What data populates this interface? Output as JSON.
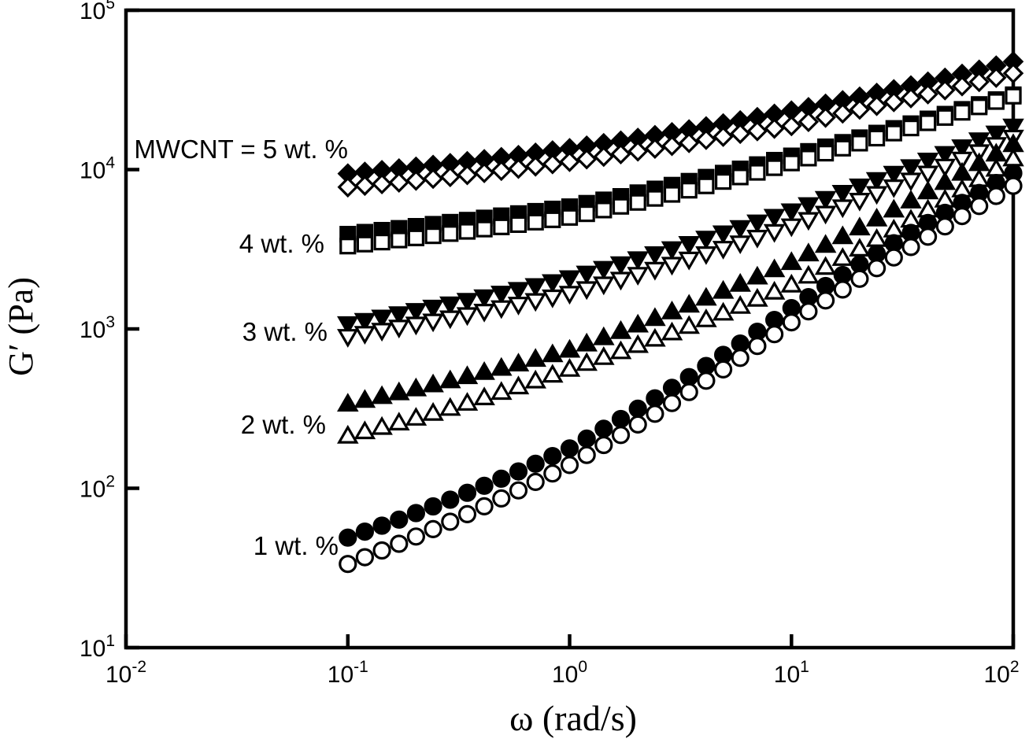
{
  "chart_data": {
    "type": "scatter",
    "title": "",
    "xlabel": "ω (rad/s)",
    "ylabel": "G′ (Pa)",
    "x_scale": "log",
    "y_scale": "log",
    "xlim": [
      0.01,
      100
    ],
    "ylim": [
      10,
      100000
    ],
    "grid": false,
    "legend_position": "inline-annotations",
    "x_ticks": [
      {
        "base": "10",
        "exp": "-2"
      },
      {
        "base": "10",
        "exp": "-1"
      },
      {
        "base": "10",
        "exp": "0"
      },
      {
        "base": "10",
        "exp": "1"
      },
      {
        "base": "10",
        "exp": "2"
      }
    ],
    "y_ticks": [
      {
        "base": "10",
        "exp": "1"
      },
      {
        "base": "10",
        "exp": "2"
      },
      {
        "base": "10",
        "exp": "3"
      },
      {
        "base": "10",
        "exp": "4"
      },
      {
        "base": "10",
        "exp": "5"
      }
    ],
    "annotations": [
      {
        "id": "label-5wt",
        "text": "MWCNT = 5 wt. %"
      },
      {
        "id": "label-4wt",
        "text": "4 wt. %"
      },
      {
        "id": "label-3wt",
        "text": "3 wt. %"
      },
      {
        "id": "label-2wt",
        "text": "2 wt. %"
      },
      {
        "id": "label-1wt",
        "text": "1 wt. %"
      }
    ],
    "x_samples": [
      0.1,
      0.178,
      0.316,
      0.562,
      1,
      1.78,
      3.16,
      5.62,
      10,
      17.8,
      31.6,
      56.2,
      100
    ],
    "marker_render_count": 40,
    "series": [
      {
        "id": "5wt-filled",
        "name": "MWCNT 5 wt.% (filled)",
        "marker": "diamond",
        "variant": "filled",
        "G_prime": [
          9440,
          10200,
          11100,
          12200,
          13600,
          15300,
          17450,
          20100,
          23400,
          27500,
          32700,
          39200,
          47600
        ]
      },
      {
        "id": "5wt-open",
        "name": "MWCNT 5 wt.% (open)",
        "marker": "diamond",
        "variant": "open",
        "G_prime": [
          7760,
          8370,
          9130,
          10060,
          11200,
          12650,
          14400,
          16650,
          18800,
          22900,
          27300,
          32900,
          40200
        ]
      },
      {
        "id": "4wt-filled",
        "name": "MWCNT 4 wt.% (filled)",
        "marker": "square",
        "variant": "filled",
        "G_prime": [
          3930,
          4310,
          4740,
          5250,
          5850,
          6870,
          8200,
          9930,
          12190,
          15070,
          18750,
          23440,
          29500
        ]
      },
      {
        "id": "4wt-open",
        "name": "MWCNT 4 wt.% (open)",
        "marker": "square",
        "variant": "open",
        "G_prime": [
          3310,
          3640,
          4030,
          4480,
          5010,
          5960,
          7190,
          8830,
          11000,
          13870,
          17580,
          22440,
          28900
        ]
      },
      {
        "id": "3wt-filled",
        "name": "MWCNT 3 wt.% (filled)",
        "marker": "triangle-down",
        "variant": "filled",
        "G_prime": [
          1070,
          1250,
          1460,
          1730,
          2080,
          2590,
          3280,
          4210,
          5470,
          7310,
          9860,
          13460,
          18600
        ]
      },
      {
        "id": "3wt-open",
        "name": "MWCNT 3 wt.% (open)",
        "marker": "triangle-down",
        "variant": "open",
        "G_prime": [
          890,
          1030,
          1190,
          1400,
          1660,
          2070,
          2620,
          3370,
          4400,
          5930,
          8110,
          11250,
          15850
        ]
      },
      {
        "id": "2wt-filled",
        "name": "MWCNT 2 wt.% (filled)",
        "marker": "triangle-up",
        "variant": "filled",
        "G_prime": [
          340,
          406,
          490,
          597,
          741,
          993,
          1350,
          1870,
          2630,
          3940,
          5980,
          9230,
          14460
        ]
      },
      {
        "id": "2wt-open",
        "name": "MWCNT 2 wt.% (open)",
        "marker": "triangle-up",
        "variant": "open",
        "G_prime": [
          214,
          263,
          331,
          427,
          562,
          741,
          995,
          1360,
          1900,
          2880,
          4510,
          7230,
          11750
        ]
      },
      {
        "id": "1wt-filled",
        "name": "MWCNT 1 wt.% (filled)",
        "marker": "circle",
        "variant": "filled",
        "G_prime": [
          49,
          65,
          89,
          124,
          178,
          282,
          460,
          775,
          1350,
          2270,
          3720,
          5960,
          9500
        ]
      },
      {
        "id": "1wt-open",
        "name": "MWCNT 1 wt.% (open)",
        "marker": "circle",
        "variant": "open",
        "G_prime": [
          33.5,
          46,
          65,
          94,
          140,
          224,
          370,
          630,
          1100,
          1840,
          3030,
          4920,
          7900
        ]
      }
    ],
    "colors": {
      "foreground": "#000000",
      "background": "#ffffff"
    }
  }
}
